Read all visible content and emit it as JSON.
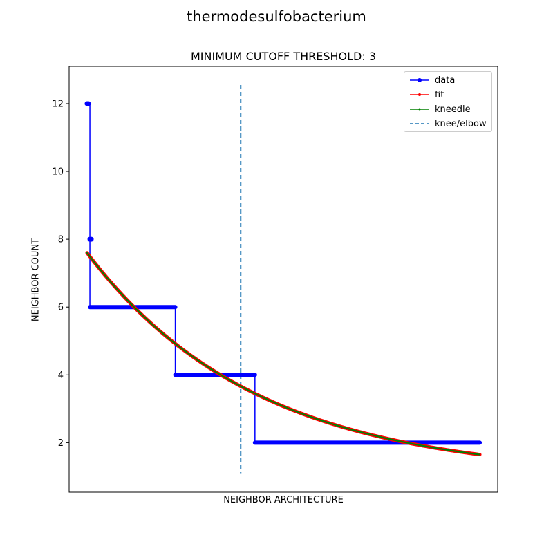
{
  "chart_data": {
    "type": "line",
    "suptitle": "thermodesulfobacterium",
    "title": "MINIMUM CUTOFF THRESHOLD: 3",
    "xlabel": "NEIGHBOR ARCHITECTURE",
    "ylabel": "NEIGHBOR COUNT",
    "xlim": [
      -6.3,
      144.3
    ],
    "ylim": [
      0.54,
      13.1
    ],
    "yticks": [
      2,
      4,
      6,
      8,
      10,
      12
    ],
    "xticks_shown": false,
    "grid": false,
    "legend_position": "top-right",
    "data_steps": [
      {
        "x_start": 0,
        "x_end": 0,
        "y": 12
      },
      {
        "x_start": 1,
        "x_end": 1,
        "y": 8
      },
      {
        "x_start": 1,
        "x_end": 31,
        "y": 6
      },
      {
        "x_start": 31,
        "x_end": 59,
        "y": 4
      },
      {
        "x_start": 59,
        "x_end": 138,
        "y": 2
      }
    ],
    "fit_curve": {
      "x_start": 0,
      "x_end": 138,
      "y_start": 7.6,
      "y_end": 1.6,
      "y_asymptote": 1.0,
      "decay": 0.0168
    },
    "knee_x": 54,
    "knee_line_y": [
      1.1,
      12.55
    ],
    "series": [
      {
        "name": "data",
        "color": "#0000ff",
        "style": "line-with-dot-markers"
      },
      {
        "name": "fit",
        "color": "#ff0000",
        "style": "line-with-small-dot-markers"
      },
      {
        "name": "kneedle",
        "color": "#008000",
        "style": "line-with-small-markers"
      },
      {
        "name": "knee/elbow",
        "color": "#1f77b4",
        "style": "dashed"
      }
    ]
  }
}
